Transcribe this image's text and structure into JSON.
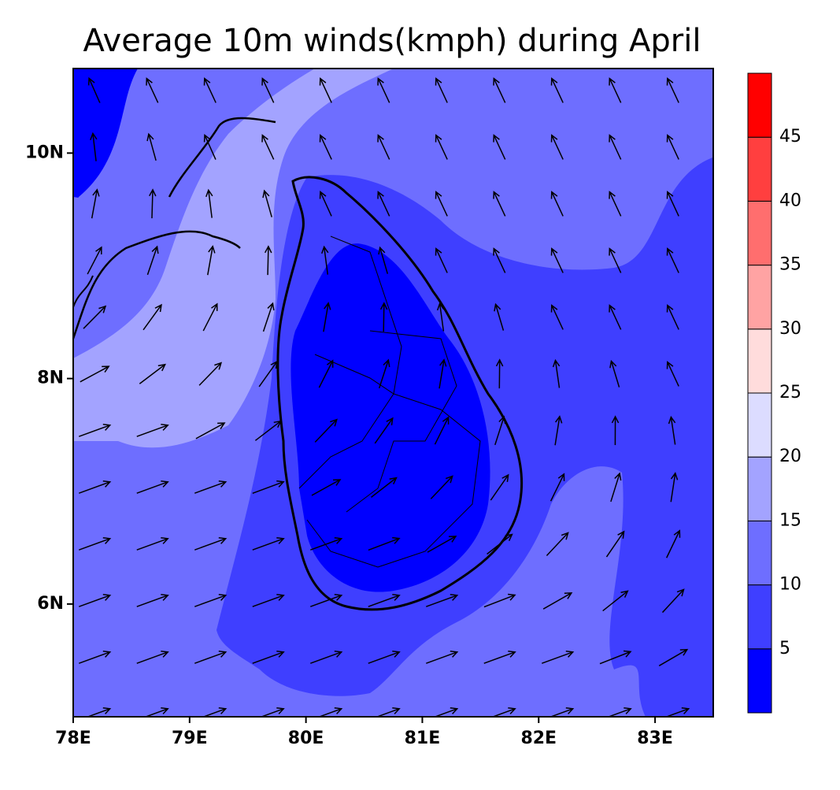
{
  "chart_data": {
    "type": "contour",
    "title": "Average 10m winds(kmph) during April",
    "xlim": [
      78,
      83.5
    ],
    "ylim": [
      5,
      10.75
    ],
    "xticks": [
      {
        "value": 78,
        "label": "78E"
      },
      {
        "value": 79,
        "label": "79E"
      },
      {
        "value": 80,
        "label": "80E"
      },
      {
        "value": 81,
        "label": "81E"
      },
      {
        "value": 82,
        "label": "82E"
      },
      {
        "value": 83,
        "label": "83E"
      }
    ],
    "yticks": [
      {
        "value": 6,
        "label": "6N"
      },
      {
        "value": 8,
        "label": "8N"
      },
      {
        "value": 10,
        "label": "10N"
      }
    ],
    "colorbar": {
      "levels": [
        5,
        10,
        15,
        20,
        25,
        30,
        35,
        40,
        45
      ],
      "colors": [
        "#0000ff",
        "#3f3fff",
        "#6e6eff",
        "#a3a3ff",
        "#dcdcff",
        "#ffdcdc",
        "#ffa3a3",
        "#ff6e6e",
        "#ff3f3f",
        "#ff0000"
      ]
    }
  }
}
